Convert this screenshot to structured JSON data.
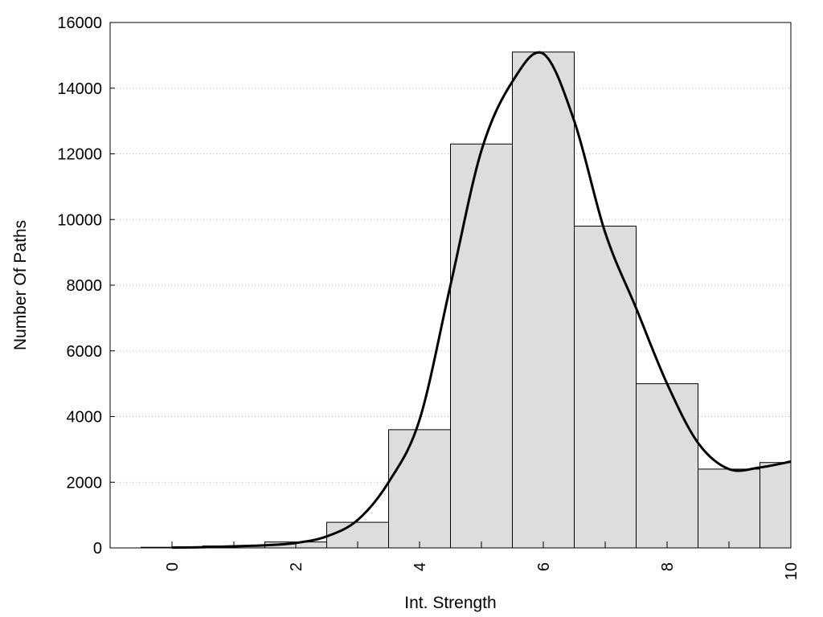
{
  "chart_data": {
    "type": "bar",
    "title": "",
    "xlabel": "Int. Strength",
    "ylabel": "Number Of Paths",
    "xlim": [
      -1,
      10
    ],
    "ylim": [
      0,
      16000
    ],
    "x_ticks": [
      "0",
      "2",
      "4",
      "6",
      "8",
      "10"
    ],
    "y_ticks": [
      "0",
      "2000",
      "4000",
      "6000",
      "8000",
      "10000",
      "12000",
      "14000",
      "16000"
    ],
    "grid": "horizontal dotted",
    "legend": "none",
    "bar_color": "#dddddd",
    "bars": {
      "x": [
        0,
        1,
        2,
        3,
        4,
        5,
        6,
        7,
        8,
        9,
        10
      ],
      "values": [
        20,
        60,
        180,
        780,
        3600,
        12300,
        15100,
        9800,
        5000,
        2400,
        2600
      ]
    },
    "curve": {
      "x": [
        0,
        0.5,
        1,
        1.5,
        2,
        2.5,
        3,
        3.5,
        4,
        4.5,
        5,
        5.5,
        6,
        6.5,
        7,
        7.5,
        8,
        8.5,
        9,
        9.5,
        10
      ],
      "values": [
        10,
        20,
        50,
        80,
        150,
        350,
        850,
        2000,
        3900,
        8000,
        12100,
        14200,
        15050,
        13000,
        9600,
        7300,
        5000,
        3200,
        2400,
        2450,
        2630
      ]
    }
  }
}
